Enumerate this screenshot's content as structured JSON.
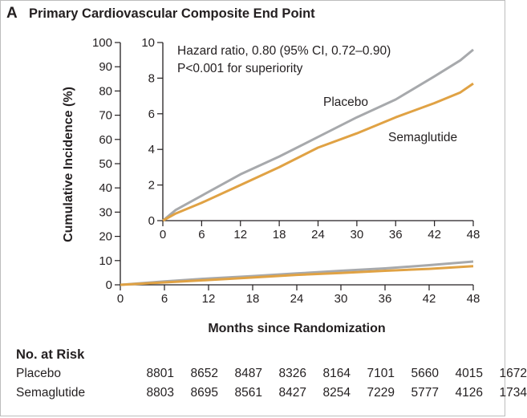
{
  "panel": {
    "letter": "A",
    "title": "Primary Cardiovascular Composite End Point"
  },
  "colors": {
    "placebo": "#a7a9ac",
    "semaglutide": "#e0a244",
    "axis": "#231f20"
  },
  "chart_data": [
    {
      "type": "line",
      "name": "main",
      "title": "Primary Cardiovascular Composite End Point",
      "xlabel": "Months since Randomization",
      "ylabel": "Cumulative Incidence (%)",
      "xlim": [
        0,
        48
      ],
      "ylim": [
        0,
        100
      ],
      "x_ticks": [
        "0",
        "6",
        "12",
        "18",
        "24",
        "30",
        "36",
        "42",
        "48"
      ],
      "y_ticks": [
        "0",
        "10",
        "20",
        "30",
        "40",
        "50",
        "60",
        "70",
        "80",
        "90",
        "100"
      ],
      "x": [
        0,
        6,
        12,
        18,
        24,
        30,
        36,
        42,
        48
      ],
      "series": [
        {
          "name": "Placebo",
          "values": [
            0,
            1.4,
            2.6,
            3.6,
            4.7,
            5.8,
            6.8,
            8.1,
            9.6
          ]
        },
        {
          "name": "Semaglutide",
          "values": [
            0,
            1.0,
            2.0,
            3.0,
            4.1,
            4.9,
            5.8,
            6.6,
            7.7
          ]
        }
      ],
      "grid": false
    },
    {
      "type": "line",
      "name": "inset",
      "xlim": [
        0,
        48
      ],
      "ylim": [
        0,
        10
      ],
      "x_ticks": [
        "0",
        "6",
        "12",
        "18",
        "24",
        "30",
        "36",
        "42",
        "48"
      ],
      "y_ticks": [
        "0",
        "2",
        "4",
        "6",
        "8",
        "10"
      ],
      "x": [
        0,
        2,
        6,
        12,
        18,
        24,
        30,
        36,
        42,
        46,
        48
      ],
      "series": [
        {
          "name": "Placebo",
          "values": [
            0,
            0.6,
            1.4,
            2.6,
            3.6,
            4.7,
            5.8,
            6.8,
            8.1,
            9.0,
            9.6
          ]
        },
        {
          "name": "Semaglutide",
          "values": [
            0,
            0.4,
            1.0,
            2.0,
            3.0,
            4.1,
            4.9,
            5.8,
            6.6,
            7.2,
            7.7
          ]
        }
      ],
      "annotations": [
        "Hazard ratio, 0.80 (95% CI, 0.72–0.90)",
        "P<0.001 for superiority",
        "Placebo",
        "Semaglutide"
      ],
      "grid": false
    }
  ],
  "risk_table": {
    "title": "No. at Risk",
    "rows": [
      {
        "label": "Placebo",
        "values": [
          "8801",
          "8652",
          "8487",
          "8326",
          "8164",
          "7101",
          "5660",
          "4015",
          "1672"
        ]
      },
      {
        "label": "Semaglutide",
        "values": [
          "8803",
          "8695",
          "8561",
          "8427",
          "8254",
          "7229",
          "5777",
          "4126",
          "1734"
        ]
      }
    ]
  }
}
